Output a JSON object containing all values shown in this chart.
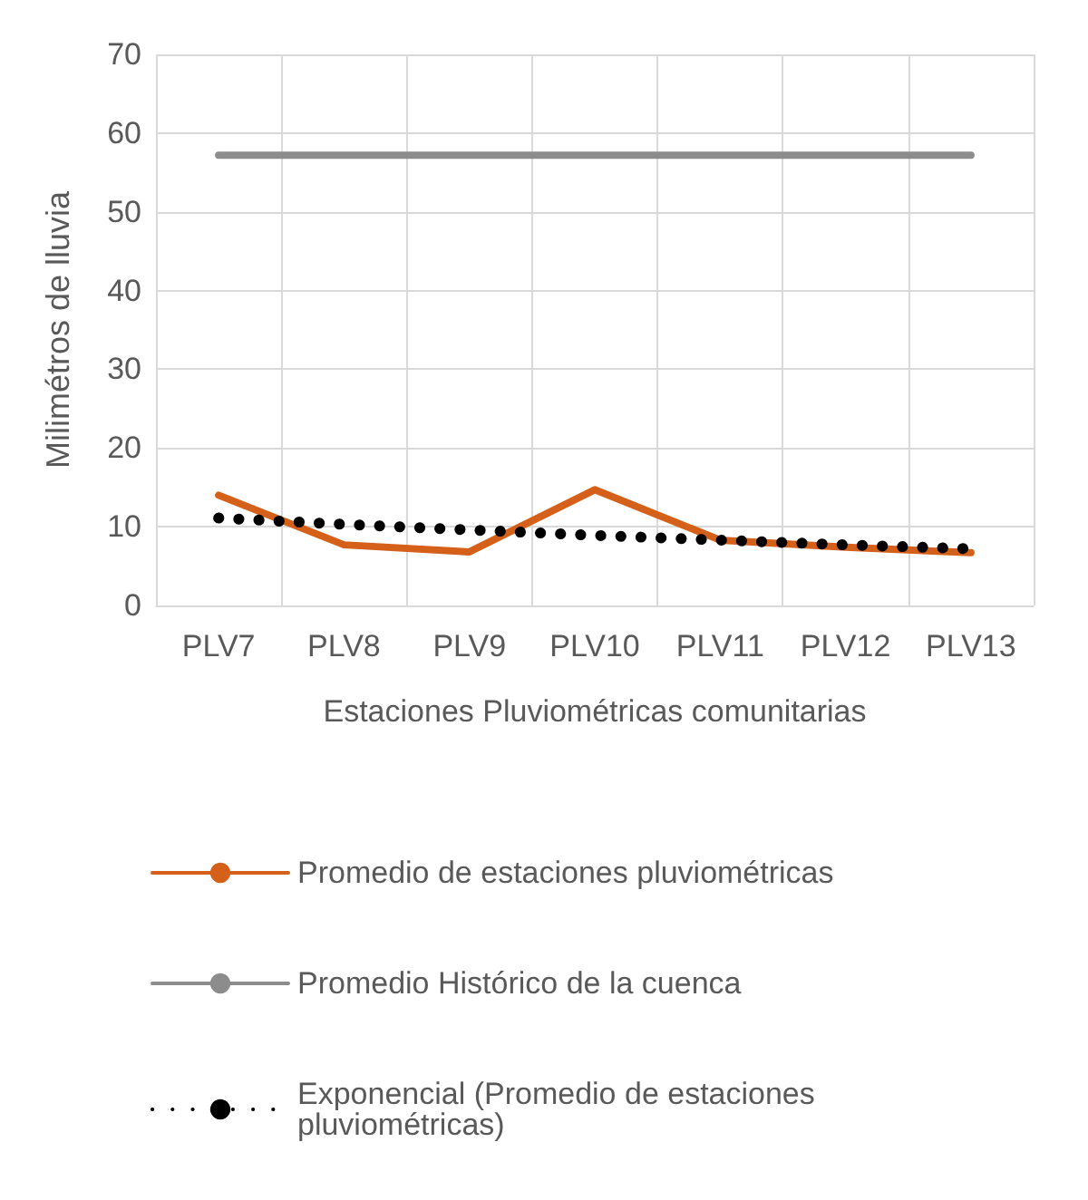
{
  "chart_data": {
    "type": "line",
    "xlabel": "Estaciones Pluviométricas comunitarias",
    "ylabel": "Milimétros de lluvia",
    "categories": [
      "PLV7",
      "PLV8",
      "PLV9",
      "PLV10",
      "PLV11",
      "PLV12",
      "PLV13"
    ],
    "series": [
      {
        "name": "Promedio de estaciones pluviométricas",
        "color": "#d5601a",
        "values": [
          14.0,
          7.7,
          6.8,
          14.7,
          8.3,
          7.4,
          6.7
        ]
      },
      {
        "name": "Promedio Histórico de la cuenca",
        "color": "#8c8c8c",
        "values": [
          57.2,
          57.2,
          57.2,
          57.2,
          57.2,
          57.2,
          57.2
        ]
      },
      {
        "name": "Exponencial (Promedio de estaciones pluviométricas)",
        "color": "#000000",
        "line_style": "dotted",
        "values": [
          11.1,
          10.3,
          9.6,
          8.9,
          8.3,
          7.7,
          7.2
        ]
      }
    ],
    "ylim": [
      0,
      70
    ],
    "yticks": [
      0,
      10,
      20,
      30,
      40,
      50,
      60,
      70
    ],
    "grid": true,
    "legend": "bottom",
    "marker": "none"
  }
}
